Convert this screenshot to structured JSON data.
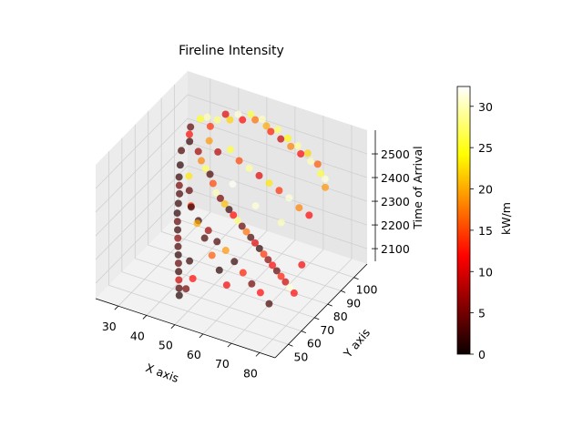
{
  "chart_data": {
    "type": "scatter",
    "projection": "3d",
    "title": "Fireline Intensity",
    "xlabel": "X axis",
    "ylabel": "Y axis",
    "zlabel": "Time of Arrival",
    "xlim": [
      22,
      85.5
    ],
    "ylim": [
      40,
      110
    ],
    "zlim": [
      2035,
      2600
    ],
    "xticks": [
      30,
      40,
      50,
      60,
      70,
      80
    ],
    "yticks": [
      50,
      60,
      70,
      80,
      90,
      100
    ],
    "zticks": [
      2100,
      2200,
      2300,
      2400,
      2500
    ],
    "grid": true,
    "colormap": "hot",
    "colorbar": {
      "label": "kW/m",
      "vmin": 0,
      "vmax": 32.4,
      "ticks": [
        0,
        5,
        10,
        15,
        20,
        25,
        30
      ]
    },
    "points_note_columns": [
      "x",
      "y",
      "z",
      "intensity"
    ],
    "points": [
      [
        30,
        95,
        2480,
        3
      ],
      [
        31,
        92,
        2470,
        12
      ],
      [
        32,
        90,
        2455,
        1
      ],
      [
        30,
        88,
        2420,
        2
      ],
      [
        31,
        85,
        2380,
        0.5
      ],
      [
        32,
        82,
        2350,
        1
      ],
      [
        33,
        80,
        2330,
        4
      ],
      [
        34,
        78,
        2310,
        2
      ],
      [
        35,
        75,
        2290,
        1
      ],
      [
        36,
        72,
        2270,
        0.8
      ],
      [
        37,
        70,
        2250,
        3
      ],
      [
        38,
        68,
        2230,
        1
      ],
      [
        39,
        66,
        2210,
        5
      ],
      [
        40,
        64,
        2190,
        2
      ],
      [
        41,
        62,
        2170,
        0.5
      ],
      [
        42,
        60,
        2150,
        3
      ],
      [
        43,
        58,
        2130,
        1
      ],
      [
        44,
        56,
        2110,
        8
      ],
      [
        45,
        54,
        2090,
        2
      ],
      [
        46,
        52,
        2075,
        0.3
      ],
      [
        33,
        96,
        2520,
        25
      ],
      [
        35,
        97,
        2530,
        30
      ],
      [
        37,
        95,
        2510,
        14
      ],
      [
        39,
        96,
        2540,
        28
      ],
      [
        41,
        98,
        2560,
        9
      ],
      [
        43,
        97,
        2550,
        22
      ],
      [
        45,
        99,
        2570,
        31
      ],
      [
        47,
        98,
        2560,
        11
      ],
      [
        49,
        100,
        2580,
        26
      ],
      [
        51,
        99,
        2570,
        17
      ],
      [
        53,
        100,
        2575,
        30
      ],
      [
        55,
        99,
        2560,
        20
      ],
      [
        57,
        98,
        2550,
        13
      ],
      [
        59,
        99,
        2560,
        27
      ],
      [
        61,
        97,
        2540,
        8
      ],
      [
        63,
        98,
        2545,
        24
      ],
      [
        65,
        96,
        2530,
        18
      ],
      [
        67,
        97,
        2535,
        29
      ],
      [
        69,
        95,
        2520,
        12
      ],
      [
        71,
        96,
        2525,
        22
      ],
      [
        73,
        94,
        2510,
        30
      ],
      [
        75,
        95,
        2500,
        16
      ],
      [
        77,
        93,
        2480,
        26
      ],
      [
        79,
        92,
        2470,
        31
      ],
      [
        80,
        90,
        2450,
        19
      ],
      [
        36,
        88,
        2440,
        6
      ],
      [
        38,
        86,
        2420,
        18
      ],
      [
        40,
        85,
        2400,
        27
      ],
      [
        42,
        84,
        2390,
        2
      ],
      [
        44,
        82,
        2370,
        15
      ],
      [
        46,
        80,
        2350,
        30
      ],
      [
        48,
        79,
        2340,
        4
      ],
      [
        50,
        78,
        2330,
        21
      ],
      [
        52,
        77,
        2320,
        1
      ],
      [
        54,
        76,
        2310,
        12
      ],
      [
        56,
        75,
        2300,
        28
      ],
      [
        58,
        74,
        2290,
        3
      ],
      [
        60,
        73,
        2280,
        17
      ],
      [
        62,
        72,
        2270,
        2
      ],
      [
        64,
        71,
        2260,
        9
      ],
      [
        66,
        70,
        2250,
        0.7
      ],
      [
        68,
        69,
        2240,
        14
      ],
      [
        70,
        68,
        2230,
        5
      ],
      [
        72,
        67,
        2220,
        11
      ],
      [
        74,
        66,
        2210,
        3
      ],
      [
        76,
        65,
        2200,
        13
      ],
      [
        78,
        64,
        2190,
        8
      ],
      [
        80,
        63,
        2180,
        31
      ],
      [
        82,
        62,
        2170,
        12
      ],
      [
        81,
        70,
        2240,
        10
      ],
      [
        38,
        92,
        2470,
        19
      ],
      [
        42,
        90,
        2450,
        7
      ],
      [
        46,
        91,
        2470,
        26
      ],
      [
        50,
        89,
        2450,
        15
      ],
      [
        54,
        88,
        2440,
        29
      ],
      [
        58,
        87,
        2430,
        9
      ],
      [
        62,
        86,
        2420,
        23
      ],
      [
        66,
        85,
        2410,
        14
      ],
      [
        70,
        84,
        2400,
        31
      ],
      [
        74,
        83,
        2380,
        18
      ],
      [
        78,
        82,
        2370,
        11
      ],
      [
        40,
        74,
        2300,
        1
      ],
      [
        44,
        70,
        2270,
        20
      ],
      [
        48,
        67,
        2240,
        2
      ],
      [
        52,
        64,
        2200,
        16
      ],
      [
        56,
        61,
        2170,
        0.5
      ],
      [
        60,
        58,
        2140,
        10
      ],
      [
        35,
        83,
        2360,
        23
      ],
      [
        37,
        79,
        2330,
        3
      ],
      [
        39,
        76,
        2290,
        14
      ],
      [
        43,
        73,
        2260,
        1
      ],
      [
        47,
        72,
        2240,
        6
      ],
      [
        51,
        70,
        2220,
        2
      ],
      [
        55,
        68,
        2210,
        19
      ],
      [
        59,
        66,
        2190,
        1
      ],
      [
        63,
        64,
        2170,
        13
      ],
      [
        67,
        62,
        2150,
        4
      ],
      [
        71,
        60,
        2140,
        11
      ],
      [
        75,
        58,
        2120,
        2
      ],
      [
        50,
        84,
        2380,
        32
      ],
      [
        60,
        80,
        2350,
        31
      ],
      [
        70,
        78,
        2330,
        30
      ],
      [
        45,
        62,
        2160,
        1
      ],
      [
        48,
        58,
        2120,
        12
      ],
      [
        47,
        55,
        2090,
        4
      ]
    ]
  }
}
